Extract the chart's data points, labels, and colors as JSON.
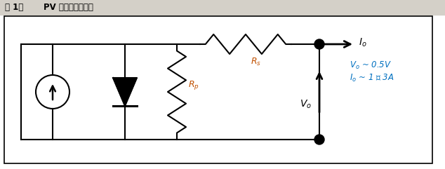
{
  "title_part1": "图 1：",
  "title_part2": "PV 电池的简化模型",
  "label_Rs": "$R_s$",
  "label_Rp": "$R_p$",
  "label_Vo": "$V_o$",
  "label_Io": "$I_o$",
  "ann1": "$V_o$ ~ 0.5V",
  "ann2": "$I_o$ ~ 1 至 3A",
  "bg_color": "#ffffff",
  "title_bg": "#d4d0c8",
  "line_color": "#000000",
  "ann_color": "#0070c0",
  "fig_width": 6.34,
  "fig_height": 2.41,
  "dpi": 100
}
